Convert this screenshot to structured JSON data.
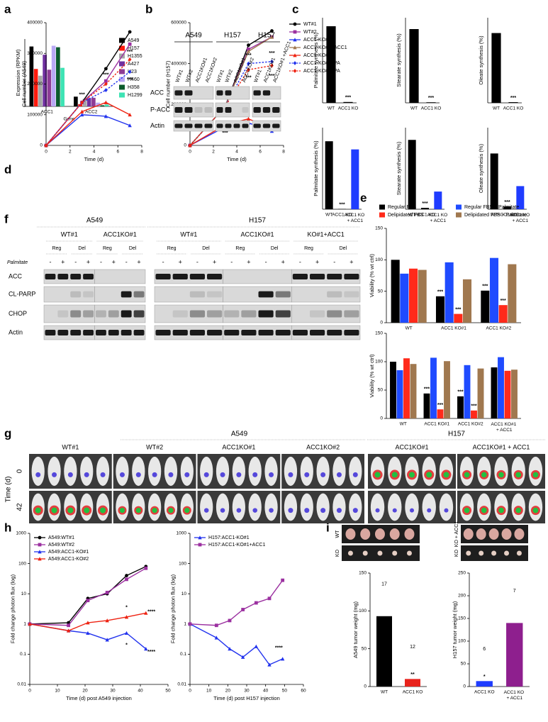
{
  "panel_labels": [
    "a",
    "b",
    "c",
    "d",
    "e",
    "f",
    "g",
    "h",
    "i"
  ],
  "chart_data": [
    {
      "type": "bar",
      "ylabel": "Expression (RPKM)",
      "xlabel": "Gene",
      "categories": [
        "ACC1",
        "ACC2"
      ],
      "ylim": [
        0,
        18
      ],
      "legend": "right",
      "series": [
        {
          "name": "A549",
          "color": "#000000",
          "values": [
            16,
            2.6
          ]
        },
        {
          "name": "H157",
          "color": "#ff1a0d",
          "values": [
            10,
            0.6
          ]
        },
        {
          "name": "H1355",
          "color": "#a6a6a6",
          "values": [
            8.2,
            2.0
          ]
        },
        {
          "name": "A427",
          "color": "#7030a0",
          "values": [
            13.8,
            2.2
          ]
        },
        {
          "name": "H23",
          "color": "#8e3c96",
          "values": [
            9.8,
            2.3
          ]
        },
        {
          "name": "H460",
          "color": "#b9a8f5",
          "values": [
            16.2,
            1.0
          ]
        },
        {
          "name": "H358",
          "color": "#0b5a2c",
          "values": [
            15.8,
            0.3
          ]
        },
        {
          "name": "H1299",
          "color": "#3ee3b4",
          "values": [
            10.3,
            0.5
          ]
        }
      ]
    },
    {
      "type": "bar",
      "ylabel": "Palmitate synthesis (%)",
      "categories": [
        "WT",
        "ACC1 KO"
      ],
      "values": [
        45,
        0.5
      ],
      "colors": [
        "#000000",
        "#000000"
      ],
      "ylim": [
        0,
        50
      ],
      "annotations": [
        null,
        "***"
      ]
    },
    {
      "type": "bar",
      "ylabel": "Stearate synthesis (%)",
      "categories": [
        "WT",
        "ACC1 KO"
      ],
      "values": [
        13,
        0.1
      ],
      "colors": [
        "#000000",
        "#000000"
      ],
      "ylim": [
        0,
        15
      ],
      "annotations": [
        null,
        "***"
      ]
    },
    {
      "type": "bar",
      "ylabel": "Oleate synthesis (%)",
      "categories": [
        "WT",
        "ACC1 KO"
      ],
      "values": [
        20.5,
        0.2
      ],
      "colors": [
        "#000000",
        "#000000"
      ],
      "ylim": [
        0,
        25
      ],
      "annotations": [
        null,
        "***"
      ]
    },
    {
      "type": "bar",
      "ylabel": "Palmitate synthesis (%)",
      "categories": [
        "WT",
        "ACC1 KO",
        "ACC1 KO + ACC1"
      ],
      "values": [
        25,
        0.1,
        22
      ],
      "colors": [
        "#000000",
        "#000000",
        "#1f3cff"
      ],
      "ylim": [
        0,
        30
      ],
      "annotations": [
        null,
        "***",
        null
      ]
    },
    {
      "type": "bar",
      "ylabel": "Stearate synthesis (%)",
      "categories": [
        "WT",
        "ACC1 KO",
        "ACC1 KO + ACC1"
      ],
      "values": [
        5.1,
        0.1,
        1.3
      ],
      "colors": [
        "#000000",
        "#000000",
        "#1f3cff"
      ],
      "ylim": [
        0,
        6
      ],
      "annotations": [
        null,
        "***",
        null
      ]
    },
    {
      "type": "bar",
      "ylabel": "Oleate synthesis (%)",
      "categories": [
        "WT",
        "ACC1 KO",
        "ACC1 KO + ACC1"
      ],
      "values": [
        8.2,
        0.4,
        3.4
      ],
      "colors": [
        "#000000",
        "#000000",
        "#1f3cff"
      ],
      "ylim": [
        0,
        12
      ],
      "annotations": [
        null,
        "***",
        null
      ]
    },
    {
      "type": "line",
      "ylabel": "Cell number (A549)",
      "xlabel": "Time (d)",
      "x": [
        0,
        3,
        5,
        7
      ],
      "xlim": [
        0,
        8
      ],
      "xticks": [
        0,
        2,
        4,
        6,
        8
      ],
      "ylim": [
        0,
        400000
      ],
      "yticks": [
        0,
        100000,
        200000,
        300000,
        400000
      ],
      "series": [
        {
          "color": "#000000",
          "marker": "circle",
          "values": [
            0,
            140000,
            250000,
            370000
          ]
        },
        {
          "color": "#9b30a0",
          "marker": "square",
          "values": [
            0,
            140000,
            210000,
            330000
          ]
        },
        {
          "color": "#2233ee",
          "marker": "triangle",
          "values": [
            0,
            100000,
            95000,
            65000
          ]
        },
        {
          "color": "#ee2211",
          "marker": "triangle",
          "values": [
            0,
            110000,
            140000,
            100000
          ]
        },
        {
          "color": "#2233ee",
          "marker": "diamond",
          "dash": true,
          "values": [
            0,
            140000,
            180000,
            240000
          ]
        },
        {
          "color": "#ee2211",
          "marker": "diamond",
          "dash": true,
          "values": [
            0,
            140000,
            200000,
            280000
          ]
        }
      ],
      "annotations": [
        {
          "x": 3,
          "y": 165000,
          "text": "***"
        },
        {
          "x": 5,
          "y": 230000,
          "text": "***"
        },
        {
          "x": 7,
          "y": 305000,
          "text": "***"
        },
        {
          "x": 7,
          "y": 215000,
          "text": "***"
        }
      ]
    },
    {
      "type": "line",
      "ylabel": "Cell number (H157)",
      "xlabel": "Time (d)",
      "x": [
        0,
        3,
        5,
        7
      ],
      "xlim": [
        0,
        8
      ],
      "xticks": [
        0,
        2,
        4,
        6,
        8
      ],
      "ylim": [
        0,
        600000
      ],
      "yticks": [
        0,
        200000,
        400000,
        600000
      ],
      "legend": "right",
      "series": [
        {
          "name": "WT#1",
          "color": "#000000",
          "marker": "circle",
          "values": [
            0,
            190000,
            490000,
            560000
          ]
        },
        {
          "name": "WT#2",
          "color": "#9b30a0",
          "marker": "square",
          "values": [
            0,
            190000,
            470000,
            530000
          ]
        },
        {
          "name": "ACC1-KO#1",
          "color": "#2233ee",
          "marker": "triangle",
          "values": [
            0,
            90000,
            110000,
            70000
          ]
        },
        {
          "name": "ACC1-KO#1+ACC1",
          "color": "#a07850",
          "marker": "triangle",
          "values": [
            0,
            190000,
            460000,
            530000
          ]
        },
        {
          "name": "ACC1-KO#2",
          "color": "#ee2211",
          "marker": "triangle",
          "values": [
            0,
            100000,
            130000,
            80000
          ]
        },
        {
          "name": "ACC1-KO#1+PA",
          "color": "#2233ee",
          "marker": "diamond",
          "dash": true,
          "values": [
            0,
            190000,
            400000,
            410000
          ]
        },
        {
          "name": "ACC1-KO#2+PA",
          "color": "#ee2211",
          "marker": "diamond",
          "dash": true,
          "values": [
            0,
            190000,
            370000,
            390000
          ]
        }
      ],
      "annotations": [
        {
          "x": 3,
          "y": 60000,
          "text": "***"
        },
        {
          "x": 5,
          "y": 440000,
          "text": "***"
        },
        {
          "x": 5,
          "y": 330000,
          "text": "***"
        },
        {
          "x": 7,
          "y": 450000,
          "text": "***"
        },
        {
          "x": 7,
          "y": 340000,
          "text": "***"
        }
      ]
    },
    {
      "type": "bar",
      "ylabel": "Viability (% wt ctrl)",
      "categories": [
        "WT",
        "ACC1 KO#1",
        "ACC1 KO#2"
      ],
      "ylim": [
        0,
        150
      ],
      "yticks": [
        0,
        50,
        100,
        150
      ],
      "legend": "top",
      "series": [
        {
          "name": "Regular FBS",
          "color": "#000000",
          "values": [
            100,
            42,
            51
          ],
          "annotations": [
            null,
            "***",
            "***"
          ]
        },
        {
          "name": "Regular FBS + Palmitate",
          "color": "#1f4bff",
          "values": [
            78,
            96,
            103
          ]
        },
        {
          "name": "Delipidated FBS",
          "color": "#ff2a1a",
          "values": [
            86,
            14,
            28
          ],
          "annotations": [
            null,
            "***",
            "***"
          ]
        },
        {
          "name": "Delipidated FBS + Palmitate",
          "color": "#a0784f",
          "values": [
            84,
            69,
            93
          ]
        }
      ]
    },
    {
      "type": "bar",
      "ylabel": "Viability (% wt ctrl)",
      "categories": [
        "WT",
        "ACC1 KO#1",
        "ACC1 KO#2",
        "ACC1 KO#1 + ACC1"
      ],
      "ylim": [
        0,
        150
      ],
      "yticks": [
        0,
        50,
        100,
        150
      ],
      "series": [
        {
          "color": "#000000",
          "values": [
            100,
            44,
            39,
            90
          ],
          "annotations": [
            null,
            "***",
            "***",
            null
          ]
        },
        {
          "color": "#1f4bff",
          "values": [
            85,
            107,
            94,
            108
          ]
        },
        {
          "color": "#ff2a1a",
          "values": [
            106,
            16,
            14,
            84
          ],
          "annotations": [
            null,
            "***",
            "***",
            null
          ]
        },
        {
          "color": "#a0784f",
          "values": [
            96,
            101,
            88,
            86
          ]
        }
      ]
    },
    {
      "type": "line",
      "ylog": true,
      "ylabel": "Fold change photon flux (log)",
      "xlabel": "Time (d) post A549 injection",
      "x": [
        0,
        14,
        21,
        28,
        35,
        42
      ],
      "xlim": [
        0,
        50
      ],
      "xticks": [
        0,
        10,
        20,
        30,
        40,
        50
      ],
      "ylim": [
        0.01,
        1000
      ],
      "yticks": [
        0.01,
        0.1,
        1,
        10,
        100,
        1000
      ],
      "legend": "upper left",
      "series": [
        {
          "name": "A549:WT#1",
          "color": "#000000",
          "marker": "circle",
          "values": [
            1,
            1.1,
            7,
            10,
            40,
            80
          ]
        },
        {
          "name": "A549:WT#2",
          "color": "#9b30a0",
          "marker": "square",
          "values": [
            1,
            0.9,
            6,
            11,
            30,
            70
          ]
        },
        {
          "name": "A549:ACC1-KO#1",
          "color": "#2233ee",
          "marker": "triangle",
          "values": [
            1,
            0.6,
            0.5,
            0.3,
            0.5,
            0.15
          ]
        },
        {
          "name": "A549:ACC1-KO#2",
          "color": "#ee2211",
          "marker": "triangle",
          "values": [
            1,
            0.6,
            1.1,
            1.3,
            1.7,
            2.3
          ]
        }
      ],
      "annotations": [
        {
          "x": 35,
          "y": 3.5,
          "text": "*"
        },
        {
          "x": 44,
          "y": 2.5,
          "text": "****"
        },
        {
          "x": 35,
          "y": 0.2,
          "text": "*"
        },
        {
          "x": 44,
          "y": 0.12,
          "text": "****"
        }
      ]
    },
    {
      "type": "line",
      "ylog": true,
      "ylabel": "Fold change photon flux (log)",
      "xlabel": "Time (d) post H157 injection",
      "x": [
        0,
        14,
        21,
        28,
        35,
        42,
        49
      ],
      "xlim": [
        0,
        60
      ],
      "xticks": [
        0,
        10,
        20,
        30,
        40,
        50,
        60
      ],
      "ylim": [
        0.01,
        1000
      ],
      "yticks": [
        0.01,
        0.1,
        1,
        10,
        100,
        1000
      ],
      "legend": "upper left",
      "series": [
        {
          "name": "H157:ACC1-KO#1",
          "color": "#2233ee",
          "marker": "triangle",
          "values": [
            1,
            0.35,
            0.15,
            0.08,
            0.18,
            0.045,
            0.07
          ]
        },
        {
          "name": "H157:ACC1-KO#1+ACC1",
          "color": "#9b30a0",
          "marker": "square",
          "values": [
            1,
            0.9,
            1.3,
            3,
            5,
            7,
            28
          ]
        }
      ],
      "annotations": [
        {
          "x": 47,
          "y": 0.16,
          "text": "****"
        }
      ]
    },
    {
      "type": "bar",
      "ylabel": "A549 tumor weight (mg)",
      "categories": [
        "WT",
        "ACC1 KO"
      ],
      "values": [
        93,
        10
      ],
      "colors": [
        "#000000",
        "#e8231c"
      ],
      "ylim": [
        0,
        150
      ],
      "yticks": [
        0,
        50,
        100,
        150
      ],
      "n_labels": [
        "17",
        "12"
      ],
      "annotations": [
        null,
        "**"
      ]
    },
    {
      "type": "bar",
      "ylabel": "H157 tumor weight (mg)",
      "categories": [
        "ACC1 KO",
        "ACC1 KO + ACC1"
      ],
      "values": [
        12,
        140
      ],
      "colors": [
        "#1f3cff",
        "#8e1f8e"
      ],
      "ylim": [
        0,
        250
      ],
      "yticks": [
        0,
        50,
        100,
        150,
        200,
        250
      ],
      "n_labels": [
        "6",
        "7"
      ],
      "annotations": [
        "*",
        null
      ]
    }
  ],
  "blot_b": {
    "cell_lines": [
      "A549",
      "H157",
      "H157"
    ],
    "lanes": [
      [
        "WT#1",
        "WT#2",
        "ACC1KO#1",
        "ACC1KO#2"
      ],
      [
        "WT#1",
        "WT#2",
        "ACC1KO#1",
        "ACC1KO#2"
      ],
      [
        "WT#1",
        "ACC1KO#1",
        "ACC1KO#1 +ACC1"
      ]
    ],
    "rows": [
      "ACC",
      "P-ACC",
      "Actin"
    ]
  },
  "blot_f": {
    "cell_lines": [
      "A549",
      "H157"
    ],
    "groups": [
      [
        "WT#1",
        "ACC1KO#1"
      ],
      [
        "WT#1",
        "ACC1KO#1",
        "KO#1+ACC1"
      ]
    ],
    "conditions": [
      "Reg",
      "Del"
    ],
    "treatment": "Palmitate",
    "treatment_signs": [
      "-",
      "+"
    ],
    "rows": [
      "ACC",
      "CL-PARP",
      "CHOP",
      "Actin"
    ]
  },
  "imaging_g": {
    "cell_lines": [
      "A549",
      "H157"
    ],
    "groups": [
      [
        "WT#1",
        "WT#2",
        "ACC1KO#1",
        "ACC1KO#2"
      ],
      [
        "ACC1KO#1",
        "ACC1KO#1 + ACC1"
      ]
    ],
    "axis_label": "Time (d)",
    "timepoints": [
      0,
      42
    ]
  },
  "tumor_images_i": [
    {
      "rows": [
        "WT",
        "KO"
      ]
    },
    {
      "rows": [
        "KO + ACC1",
        "KO"
      ]
    }
  ]
}
